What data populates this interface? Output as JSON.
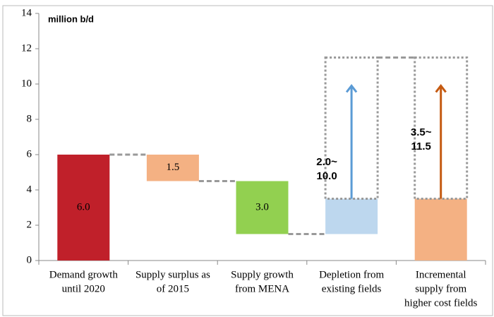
{
  "chart_data": {
    "type": "waterfall",
    "unit_label": "million b/d",
    "categories": [
      [
        "Demand growth",
        "until 2020"
      ],
      [
        "Supply surplus as",
        "of 2015"
      ],
      [
        "Supply growth",
        "from MENA"
      ],
      [
        "Depletion from",
        "existing fields"
      ],
      [
        "Incremental",
        "supply from",
        "higher cost fields"
      ]
    ],
    "values": [
      6.0,
      1.5,
      3.0,
      2.0,
      3.5
    ],
    "measure": [
      "increase",
      "decrease",
      "decrease",
      "increase",
      "total"
    ],
    "value_labels": [
      "6.0",
      "1.5",
      "3.0",
      null,
      null
    ],
    "colors": [
      "#c0202a",
      "#f4b183",
      "#92d050",
      "#bdd7ee",
      "#f4b183"
    ],
    "ranges": [
      {
        "category": 3,
        "low": 2.0,
        "high": 10.0,
        "label": [
          "2.0~",
          "10.0"
        ],
        "color": "#5b9bd5"
      },
      {
        "category": 4,
        "low": 3.5,
        "high": 11.5,
        "label": [
          "3.5~",
          "11.5"
        ],
        "color": "#c55a11"
      }
    ],
    "ylim": [
      0,
      14
    ],
    "yticks": [
      0,
      2,
      4,
      6,
      8,
      10,
      12,
      14
    ]
  }
}
